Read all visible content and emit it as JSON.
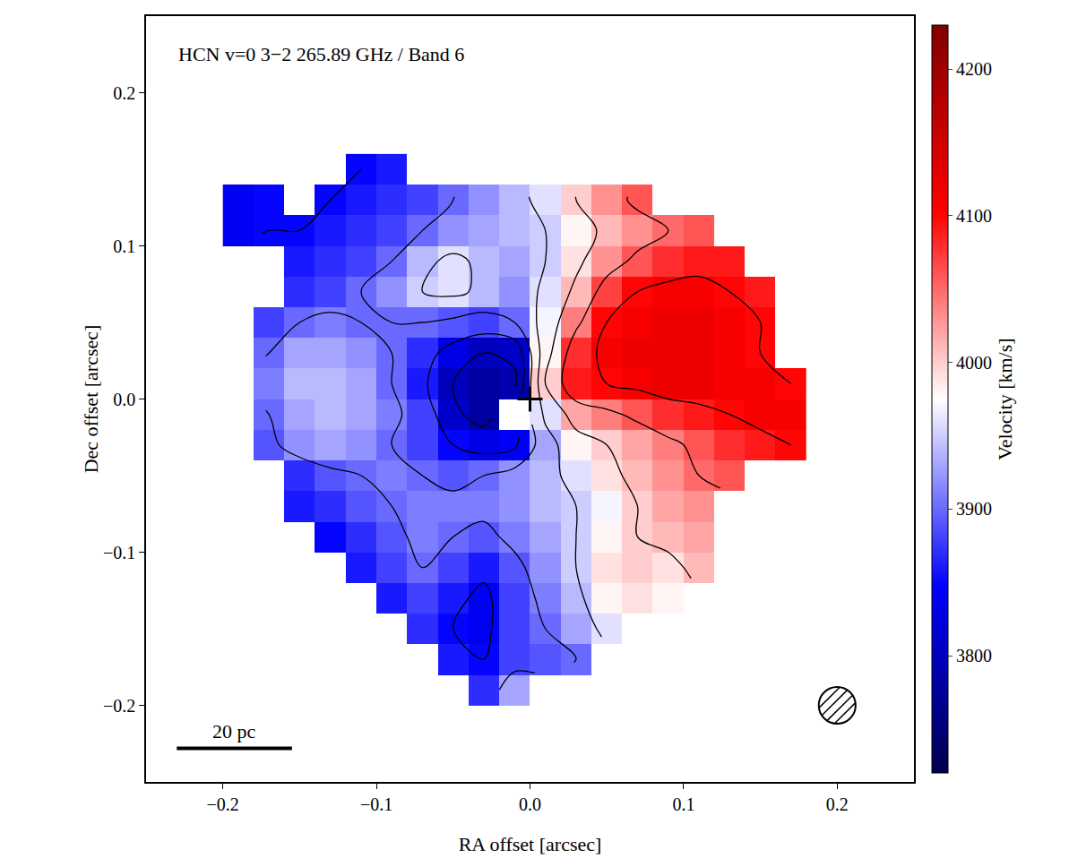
{
  "chart_data": {
    "type": "heatmap",
    "title": "HCN v=0 3−2 265.89 GHz / Band 6",
    "x_label": "RA offset [arcsec]",
    "y_label": "Dec offset [arcsec]",
    "colorbar_label": "Velocity [km/s]",
    "xlim": [
      -0.25,
      0.25
    ],
    "ylim": [
      -0.25,
      0.25
    ],
    "xticks": [
      {
        "value": -0.2,
        "label": "−0.2"
      },
      {
        "value": -0.1,
        "label": "−0.1"
      },
      {
        "value": 0,
        "label": "0.0"
      },
      0.1,
      0.2
    ],
    "yticks": [
      {
        "value": -0.2,
        "label": "−0.2"
      },
      {
        "value": -0.1,
        "label": "−0.1"
      },
      {
        "value": 0,
        "label": "0.0"
      },
      0.1,
      0.2
    ],
    "zlim": [
      3720,
      4230
    ],
    "zticks": [
      3800,
      3900,
      4000,
      4100,
      4200
    ],
    "grid": false,
    "contour_levels": {
      "start": 3800,
      "end": 4100,
      "size": 50
    },
    "nucleus": {
      "x": 0,
      "y": 0,
      "marker": "cross"
    },
    "scale_bar": {
      "label": "20 pc",
      "x": [
        -0.23,
        -0.155
      ],
      "y": -0.228
    },
    "beam": {
      "x": 0.2,
      "y": -0.2,
      "diameter": 0.024
    },
    "x": [
      -0.19,
      -0.17,
      -0.15,
      -0.13,
      -0.11,
      -0.09,
      -0.07,
      -0.05,
      -0.03,
      -0.01,
      0.01,
      0.03,
      0.05,
      0.07,
      0.09,
      0.11,
      0.13,
      0.15,
      0.17
    ],
    "y": [
      -0.19,
      -0.17,
      -0.15,
      -0.13,
      -0.11,
      -0.09,
      -0.07,
      -0.05,
      -0.03,
      -0.01,
      0.01,
      0.03,
      0.05,
      0.07,
      0.09,
      0.11,
      0.13,
      0.15
    ],
    "z": [
      [
        null,
        null,
        null,
        null,
        null,
        null,
        null,
        null,
        3870,
        3930,
        null,
        null,
        null,
        null,
        null,
        null,
        null,
        null,
        null
      ],
      [
        null,
        null,
        null,
        null,
        null,
        null,
        null,
        3860,
        3850,
        3880,
        3890,
        3900,
        null,
        null,
        null,
        null,
        null,
        null,
        null
      ],
      [
        null,
        null,
        null,
        null,
        null,
        null,
        3870,
        3850,
        3840,
        3880,
        3900,
        3930,
        3960,
        null,
        null,
        null,
        null,
        null,
        null
      ],
      [
        null,
        null,
        null,
        null,
        null,
        3860,
        3880,
        3860,
        3840,
        3880,
        3910,
        3940,
        3980,
        3990,
        3980,
        null,
        null,
        null,
        null
      ],
      [
        null,
        null,
        null,
        null,
        3860,
        3880,
        3900,
        3880,
        3860,
        3890,
        3920,
        3950,
        3990,
        4000,
        3990,
        4010,
        null,
        null,
        null
      ],
      [
        null,
        null,
        null,
        3850,
        3870,
        3890,
        3910,
        3900,
        3890,
        3910,
        3930,
        3950,
        3980,
        4000,
        4010,
        4020,
        null,
        null,
        null
      ],
      [
        null,
        null,
        3860,
        3870,
        3890,
        3900,
        3910,
        3910,
        3910,
        3920,
        3940,
        3950,
        3970,
        4000,
        4020,
        4030,
        null,
        null,
        null
      ],
      [
        null,
        null,
        3870,
        3890,
        3900,
        3910,
        3900,
        3890,
        3900,
        3920,
        3940,
        3960,
        3990,
        4010,
        4030,
        4050,
        4060,
        null,
        null
      ],
      [
        null,
        3890,
        3920,
        3930,
        3920,
        3900,
        3880,
        3850,
        3830,
        3840,
        3930,
        3980,
        4000,
        4020,
        4040,
        4060,
        4080,
        4090,
        4100
      ],
      [
        null,
        3900,
        3930,
        3940,
        3930,
        3910,
        3880,
        3810,
        3780,
        null,
        3960,
        4020,
        4040,
        4060,
        4080,
        4090,
        4100,
        4110,
        4110
      ],
      [
        null,
        3910,
        3940,
        3940,
        3930,
        3900,
        3860,
        3800,
        3780,
        3790,
        4000,
        4090,
        4100,
        4110,
        4120,
        4120,
        4110,
        4110,
        4100
      ],
      [
        null,
        3900,
        3930,
        3930,
        3920,
        3900,
        3870,
        3830,
        3800,
        3810,
        3980,
        4080,
        4110,
        4120,
        4120,
        4120,
        4110,
        4100,
        null
      ],
      [
        null,
        3880,
        3900,
        3910,
        3900,
        3900,
        3900,
        3890,
        3880,
        3900,
        3970,
        4040,
        4100,
        4110,
        4120,
        4120,
        4110,
        4100,
        null
      ],
      [
        null,
        null,
        3870,
        3880,
        3900,
        3920,
        3950,
        3960,
        3940,
        3920,
        3960,
        4010,
        4070,
        4100,
        4110,
        4110,
        4100,
        4090,
        null
      ],
      [
        null,
        null,
        3860,
        3870,
        3880,
        3900,
        3940,
        3960,
        3940,
        3930,
        3950,
        3990,
        4030,
        4060,
        4080,
        4090,
        4090,
        null,
        null
      ],
      [
        3840,
        3850,
        3850,
        3860,
        3870,
        3880,
        3900,
        3920,
        3930,
        3940,
        3950,
        3980,
        4010,
        4030,
        4050,
        4060,
        null,
        null,
        null
      ],
      [
        3840,
        3850,
        null,
        3850,
        3860,
        3870,
        3880,
        3900,
        3920,
        3940,
        3960,
        4000,
        4030,
        4060,
        null,
        null,
        null,
        null,
        null
      ],
      [
        null,
        null,
        null,
        null,
        3850,
        3860,
        null,
        null,
        null,
        null,
        null,
        null,
        null,
        null,
        null,
        null,
        null,
        null,
        null
      ]
    ]
  }
}
